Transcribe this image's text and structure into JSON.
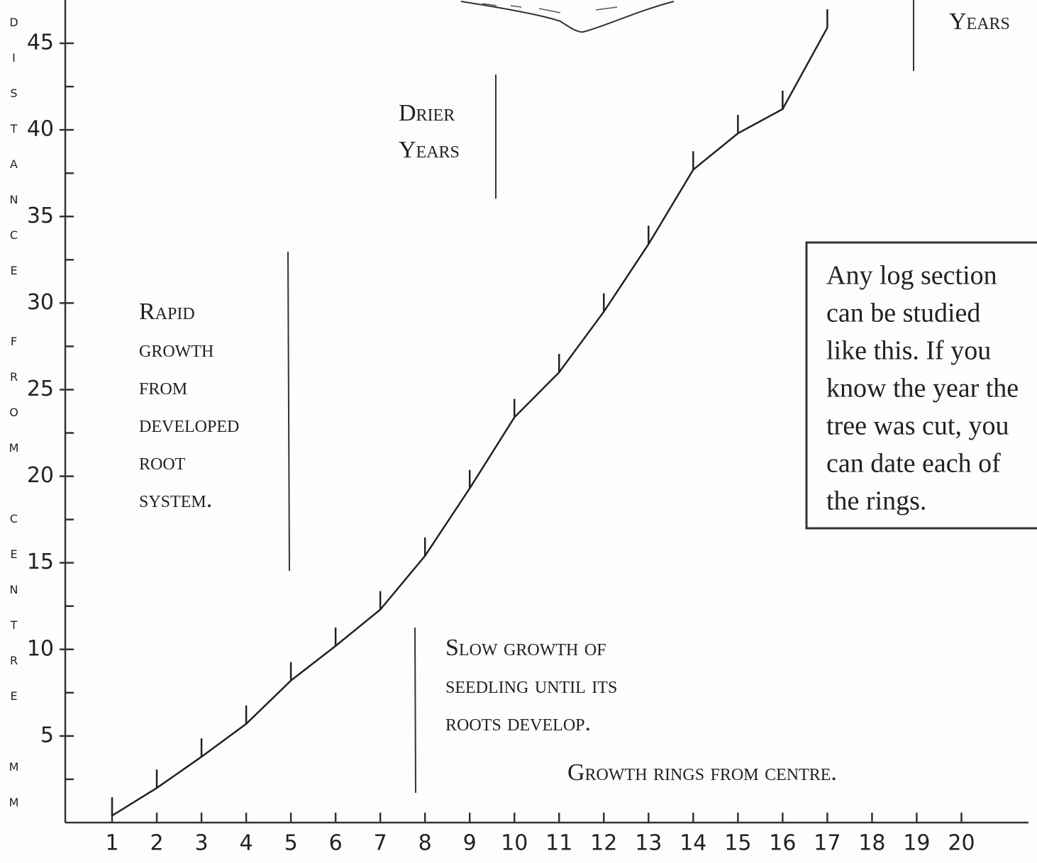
{
  "chart_data": {
    "type": "line",
    "y_label": "DISTANCE FROM CENTRE MM",
    "x_label": "Growth rings from centre.",
    "x": [
      1,
      2,
      3,
      4,
      5,
      6,
      7,
      8,
      9,
      10,
      11,
      12,
      13,
      14,
      15,
      16,
      17
    ],
    "values": [
      0.4,
      2,
      3.8,
      5.7,
      8.2,
      10.2,
      12.3,
      15.4,
      19.3,
      23.4,
      26,
      29.5,
      33.4,
      37.7,
      39.8,
      41.2,
      45.9
    ],
    "color": "#222222",
    "xlim": [
      0,
      21.5
    ],
    "ylim": [
      0,
      47.5
    ],
    "xticks": [
      1,
      2,
      3,
      4,
      5,
      6,
      7,
      8,
      9,
      10,
      11,
      12,
      13,
      14,
      15,
      16,
      17,
      18,
      19,
      20
    ],
    "yticks": [
      5,
      10,
      15,
      20,
      25,
      30,
      35,
      40,
      45
    ],
    "yminor_ticks": [
      2.5,
      7.5,
      12.5,
      17.5,
      22.5,
      27.5,
      32.5,
      37.5,
      42.5
    ],
    "annotations": [
      {
        "lines": [
          "Drier",
          "Years"
        ]
      },
      {
        "lines": [
          "Rapid",
          "growth",
          "from",
          "developed",
          "root",
          "system."
        ]
      },
      {
        "lines": [
          "Slow growth of",
          "seedling until its",
          "roots develop."
        ]
      },
      {
        "lines": [
          "Years"
        ]
      }
    ],
    "note_box": {
      "lines": [
        "Any log section",
        "can be studied",
        "like this. If you",
        "know the year the",
        "tree was cut, you",
        "can date each of",
        "the rings."
      ]
    }
  }
}
